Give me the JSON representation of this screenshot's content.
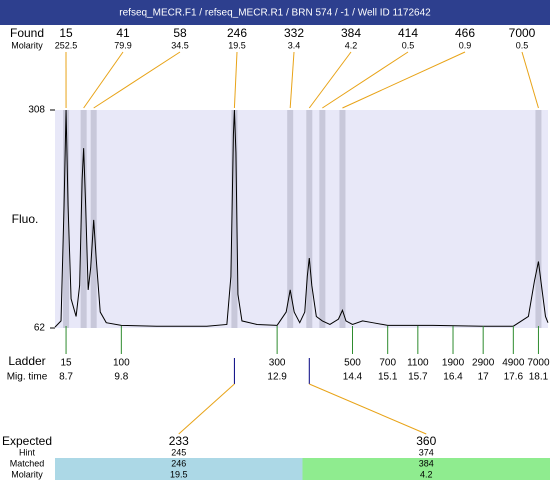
{
  "header": {
    "title": "refseq_MECR.F1 / refseq_MECR.R1 / BRN 574 / -1 / Well ID 1172642"
  },
  "chart_data": {
    "type": "line",
    "y_label": "Fluo.",
    "ylim": [
      62,
      308
    ],
    "yticks": [
      62,
      308
    ],
    "xlim": [
      8.48,
      18.29
    ],
    "color": "#000000",
    "x": [
      8.48,
      8.6,
      8.66,
      8.7,
      8.74,
      8.8,
      8.9,
      8.97,
      9.02,
      9.05,
      9.09,
      9.14,
      9.19,
      9.25,
      9.3,
      9.38,
      9.5,
      9.8,
      10.5,
      11.5,
      11.9,
      11.98,
      12.03,
      12.05,
      12.08,
      12.12,
      12.2,
      12.5,
      12.9,
      13.08,
      13.16,
      13.24,
      13.35,
      13.45,
      13.5,
      13.54,
      13.59,
      13.68,
      13.8,
      13.95,
      14.12,
      14.2,
      14.27,
      14.4,
      14.6,
      14.8,
      15.1,
      16,
      17,
      17.6,
      17.9,
      18.02,
      18.1,
      18.16,
      18.24,
      18.29
    ],
    "values": [
      63,
      70,
      200,
      308,
      200,
      95,
      75,
      110,
      230,
      265,
      200,
      105,
      130,
      184,
      140,
      80,
      68,
      65,
      64,
      64,
      66,
      120,
      280,
      308,
      260,
      100,
      70,
      66,
      65,
      80,
      105,
      80,
      68,
      80,
      120,
      141,
      110,
      75,
      70,
      66,
      72,
      82,
      70,
      66,
      70,
      68,
      65,
      65,
      64,
      64,
      75,
      115,
      137,
      110,
      75,
      68
    ],
    "found": {
      "label": "Found",
      "molarity_label": "Molarity",
      "sizes": [
        15,
        41,
        58,
        246,
        332,
        384,
        414,
        466,
        7000
      ],
      "molarities": [
        252.5,
        79.9,
        34.5,
        19.5,
        3.4,
        4.2,
        0.5,
        0.9,
        0.5
      ],
      "mig_times": [
        8.7,
        9.05,
        9.25,
        12.05,
        13.16,
        13.54,
        13.8,
        14.2,
        18.1
      ]
    },
    "ladder": {
      "label": "Ladder",
      "mig_label": "Mig. time",
      "sizes": [
        15,
        100,
        300,
        500,
        700,
        1100,
        1900,
        2900,
        4900,
        7000
      ]
    },
    "xticks": [
      8.7,
      9.8,
      12.9,
      14.4,
      15.1,
      15.7,
      16.4,
      17,
      17.6,
      18.1
    ],
    "expected": {
      "label": "Expected",
      "hint_label": "Hint",
      "matched_label": "Matched",
      "molarity_label": "Molarity",
      "items": [
        {
          "size": 233,
          "hint": 245,
          "matched": 246,
          "molarity": 19.5,
          "color": "#acd8e6"
        },
        {
          "size": 360,
          "hint": 374,
          "matched": 384,
          "molarity": 4.2,
          "color": "#8fec8f"
        }
      ]
    }
  }
}
